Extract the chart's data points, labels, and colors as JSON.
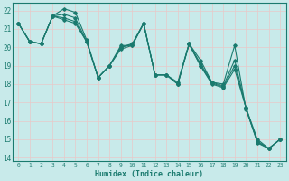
{
  "title": "",
  "xlabel": "Humidex (Indice chaleur)",
  "ylabel": "",
  "bg_color": "#c8eaea",
  "grid_color": "#d4eded",
  "line_color": "#1a7a6e",
  "xlim": [
    -0.5,
    23.5
  ],
  "ylim": [
    13.8,
    22.4
  ],
  "xticks": [
    0,
    1,
    2,
    3,
    4,
    5,
    6,
    7,
    8,
    9,
    10,
    11,
    12,
    13,
    14,
    15,
    16,
    17,
    18,
    19,
    20,
    21,
    22,
    23
  ],
  "yticks": [
    14,
    15,
    16,
    17,
    18,
    19,
    20,
    21,
    22
  ],
  "series": [
    [
      21.3,
      20.3,
      20.2,
      21.7,
      22.1,
      21.9,
      20.4,
      18.35,
      19.0,
      20.1,
      20.1,
      21.3,
      18.5,
      18.5,
      18.1,
      20.2,
      19.3,
      18.1,
      18.0,
      20.1,
      16.6,
      14.9,
      14.5,
      15.0
    ],
    [
      21.3,
      20.3,
      20.2,
      21.7,
      21.8,
      21.6,
      20.3,
      18.35,
      19.0,
      20.0,
      20.2,
      21.3,
      18.5,
      18.5,
      18.0,
      20.2,
      19.1,
      18.1,
      17.9,
      19.3,
      16.7,
      15.0,
      14.5,
      15.0
    ],
    [
      21.3,
      20.3,
      20.2,
      21.7,
      21.6,
      21.4,
      20.3,
      18.35,
      19.0,
      20.0,
      20.15,
      21.3,
      18.5,
      18.5,
      18.0,
      20.2,
      19.0,
      18.05,
      17.85,
      19.0,
      16.7,
      14.85,
      14.5,
      15.0
    ],
    [
      21.3,
      20.3,
      20.2,
      21.7,
      21.5,
      21.3,
      20.3,
      18.35,
      19.0,
      19.9,
      20.1,
      21.3,
      18.5,
      18.5,
      18.0,
      20.15,
      19.0,
      18.0,
      17.8,
      18.8,
      16.7,
      14.8,
      14.5,
      15.0
    ]
  ]
}
